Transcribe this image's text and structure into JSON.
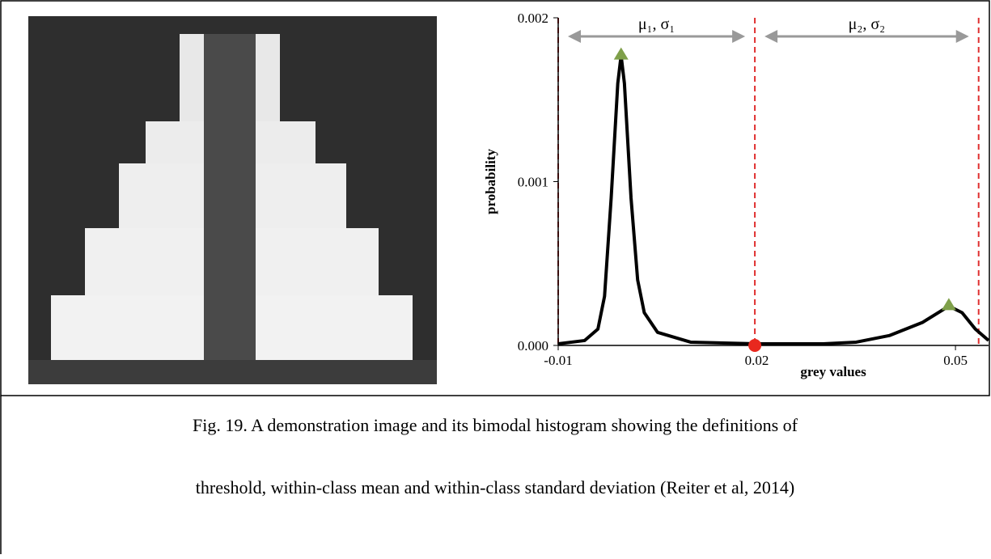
{
  "chart_data": {
    "type": "line",
    "x": [
      -0.01,
      -0.006,
      -0.004,
      -0.003,
      -0.002,
      -0.001,
      -0.0005,
      0.0,
      0.001,
      0.002,
      0.003,
      0.005,
      0.01,
      0.02,
      0.03,
      0.035,
      0.04,
      0.045,
      0.049,
      0.051,
      0.053,
      0.055
    ],
    "series": [
      {
        "color": "#000000",
        "values": [
          1e-05,
          3e-05,
          0.0001,
          0.0003,
          0.0009,
          0.0016,
          0.00177,
          0.0016,
          0.0009,
          0.0004,
          0.0002,
          8e-05,
          2e-05,
          1e-05,
          1e-05,
          2e-05,
          6e-05,
          0.00014,
          0.00024,
          0.0002,
          0.0001,
          3e-05
        ]
      }
    ],
    "xlim": [
      -0.01,
      0.055
    ],
    "ylim": [
      0,
      0.002
    ],
    "xticks": [
      -0.01,
      0.02,
      0.05
    ],
    "yticks": [
      {
        "value": 0,
        "label": "0.000"
      },
      0.001,
      0.002
    ],
    "x_label": "grey values",
    "y_label": "probability",
    "boundaries": [
      -0.01,
      0.0197,
      0.0535
    ],
    "boundary_color": "#e03030",
    "peaks": {
      "x": [
        -0.0005,
        0.049
      ],
      "y": [
        0.00177,
        0.00024
      ],
      "color": "#7fa04a"
    },
    "threshold": {
      "x": 0.0197,
      "y": 0,
      "color": "#e8281e"
    },
    "class_labels": [
      "μ₁, σ₁",
      "μ₂, σ₂"
    ],
    "grid": false
  },
  "caption": {
    "lines": [
      "Fig. 19.  A demonstration image and its bimodal histogram showing the definitions of",
      "threshold, within-class mean and within-class standard deviation (Reiter et al, 2014)"
    ]
  }
}
